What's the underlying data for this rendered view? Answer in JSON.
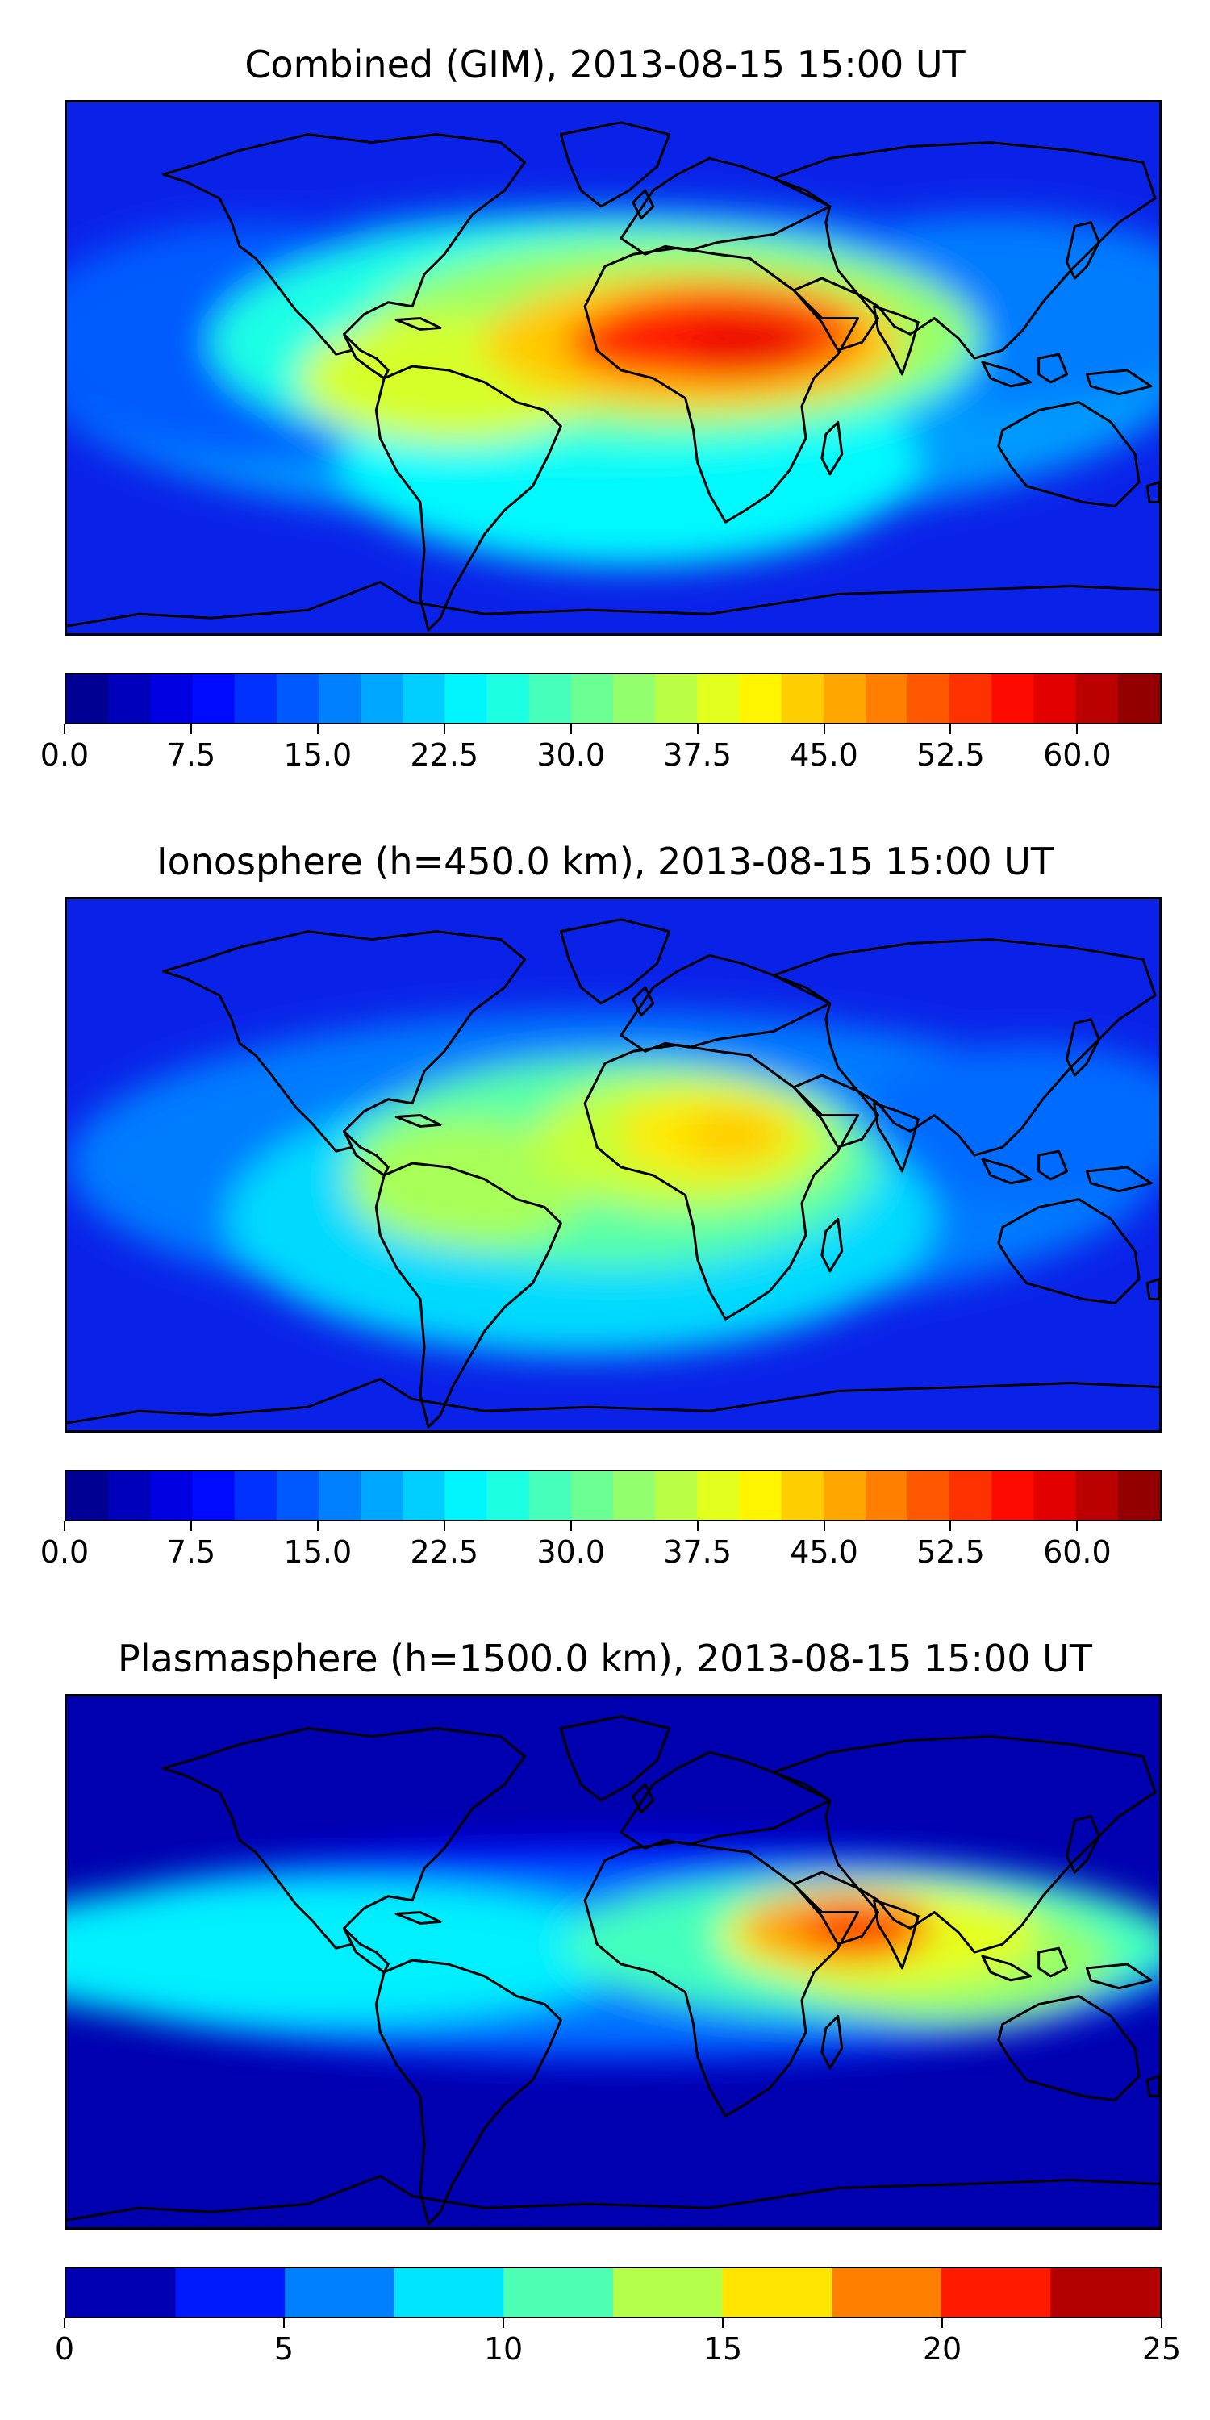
{
  "chart_data": [
    {
      "type": "heatmap",
      "title": "Combined (GIM), 2013-08-15 15:00 UT",
      "xlabel": "",
      "ylabel": "",
      "colorbar": {
        "range": [
          0.0,
          65.0
        ],
        "levels": 26,
        "ticks": [
          "0.0",
          "7.5",
          "15.0",
          "22.5",
          "30.0",
          "37.5",
          "45.0",
          "52.5",
          "60.0"
        ],
        "tick_values": [
          0.0,
          7.5,
          15.0,
          22.5,
          30.0,
          37.5,
          45.0,
          52.5,
          60.0
        ]
      },
      "peak_value": 58,
      "peak_region": "Central Africa"
    },
    {
      "type": "heatmap",
      "title": "Ionosphere  (h=450.0 km), 2013-08-15 15:00 UT",
      "xlabel": "",
      "ylabel": "",
      "colorbar": {
        "range": [
          0.0,
          65.0
        ],
        "levels": 26,
        "ticks": [
          "0.0",
          "7.5",
          "15.0",
          "22.5",
          "30.0",
          "37.5",
          "45.0",
          "52.5",
          "60.0"
        ],
        "tick_values": [
          0.0,
          7.5,
          15.0,
          22.5,
          30.0,
          37.5,
          45.0,
          52.5,
          60.0
        ]
      },
      "peak_value": 44,
      "peak_region": "North-central Africa"
    },
    {
      "type": "heatmap",
      "title": "Plasmasphere (h=1500.0 km), 2013-08-15 15:00 UT",
      "xlabel": "",
      "ylabel": "",
      "colorbar": {
        "range": [
          0,
          25
        ],
        "levels": 10,
        "ticks": [
          "0",
          "5",
          "10",
          "15",
          "20",
          "25"
        ],
        "tick_values": [
          0,
          5,
          10,
          15,
          20,
          25
        ]
      },
      "peak_value": 21,
      "peak_region": "India / Arabian Sea"
    }
  ]
}
